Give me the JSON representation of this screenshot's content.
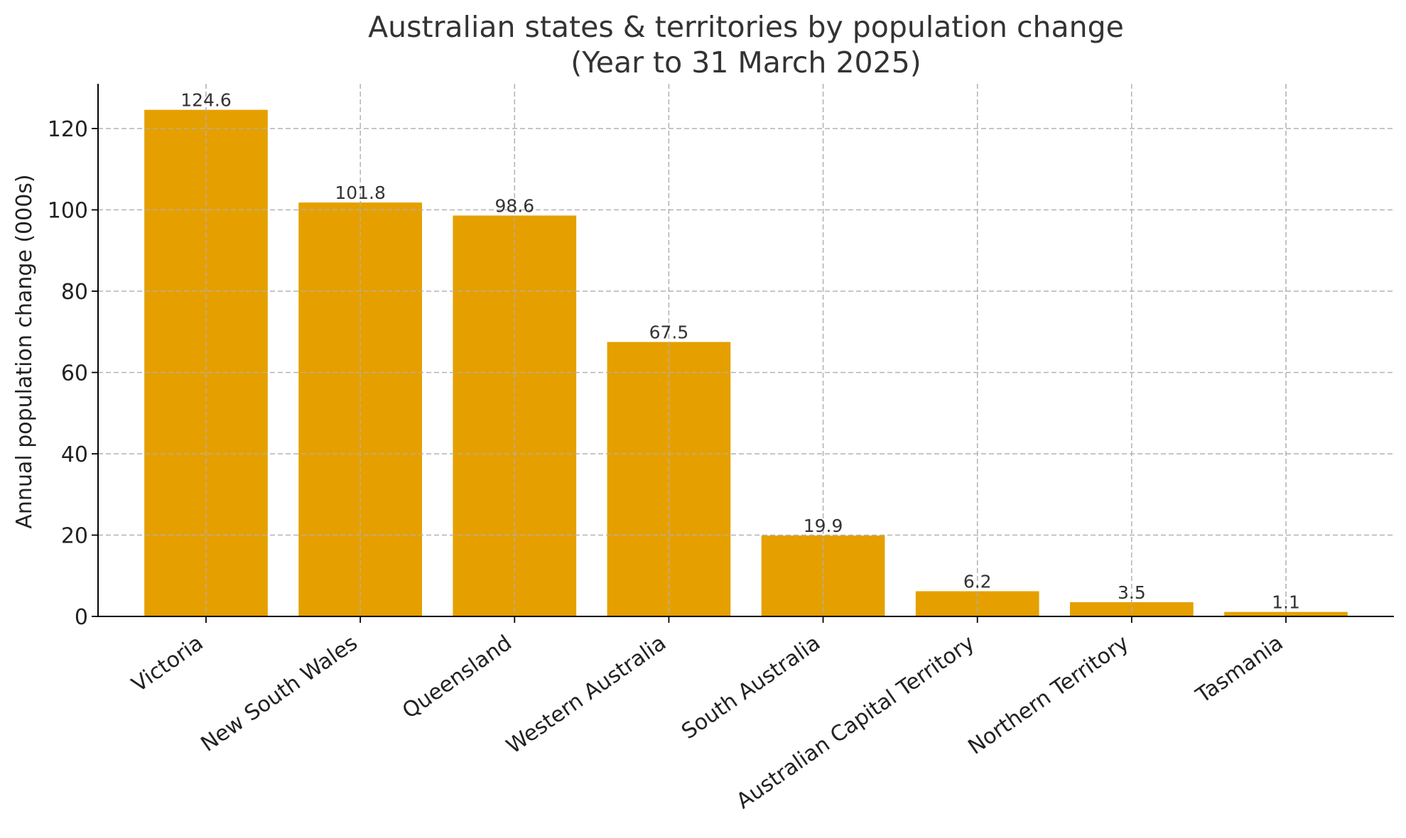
{
  "chart_data": {
    "type": "bar",
    "title": "Australian states & territories by population change",
    "subtitle": "(Year to 31 March 2025)",
    "xlabel": "",
    "ylabel": "Annual population change (000s)",
    "categories": [
      "Victoria",
      "New South Wales",
      "Queensland",
      "Western Australia",
      "South Australia",
      "Australian Capital Territory",
      "Northern Territory",
      "Tasmania"
    ],
    "values": [
      124.6,
      101.8,
      98.6,
      67.5,
      19.9,
      6.2,
      3.5,
      1.1
    ],
    "value_labels": [
      "124.6",
      "101.8",
      "98.6",
      "67.5",
      "19.9",
      "6.2",
      "3.5",
      "1.1"
    ],
    "ylim": [
      0,
      131
    ],
    "yticks": [
      0,
      20,
      40,
      60,
      80,
      100,
      120
    ],
    "grid": true,
    "bar_color": "#E5A000"
  }
}
